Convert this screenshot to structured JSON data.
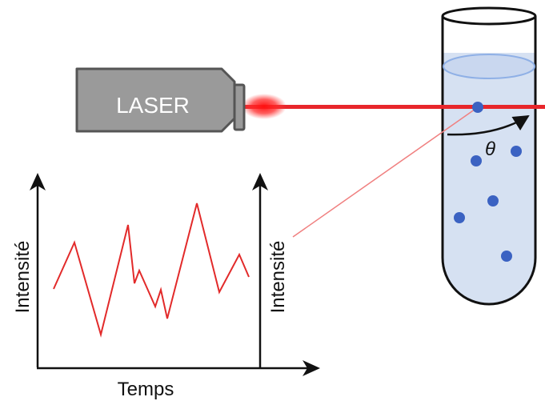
{
  "laser": {
    "label": "LASER"
  },
  "angle": {
    "symbol": "θ"
  },
  "plot": {
    "x_axis_label": "Temps",
    "y_axis_label_left": "Intensité",
    "y_axis_label_right": "Intensité"
  },
  "colors": {
    "laser_body": "#9a9a9a",
    "laser_beam": "#e8262b",
    "tube_fill": "#d6e1f2",
    "liquid_surface": "#b3c9ec",
    "particle": "#3b62c2",
    "signal_line": "#e22a2a",
    "axis": "#111111"
  },
  "icons": [
    "laser-device",
    "test-tube",
    "particle-dot",
    "angle-arrow",
    "axis-arrow"
  ]
}
